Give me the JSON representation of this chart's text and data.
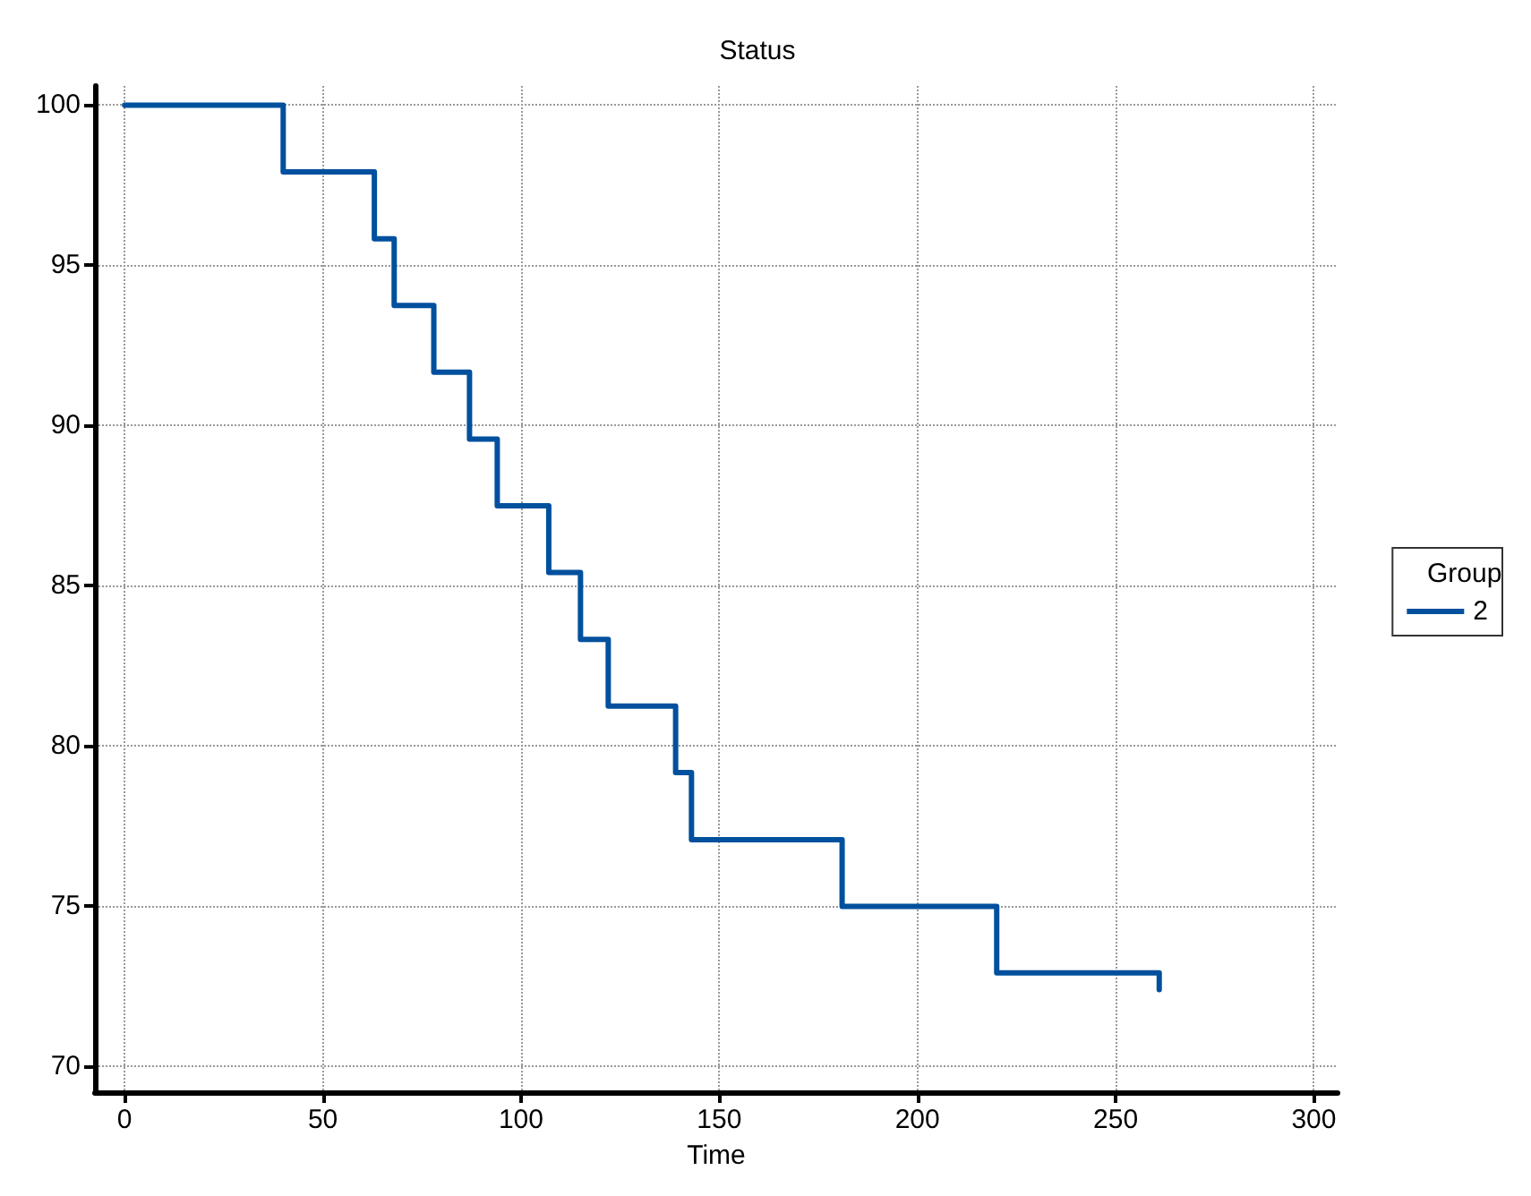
{
  "chart_data": {
    "type": "step",
    "title": "Status",
    "xlabel": "Time",
    "legend_title": "Group",
    "x": [
      0,
      40,
      63,
      68,
      78,
      87,
      94,
      107,
      115,
      122,
      139,
      143,
      181,
      220,
      261,
      261
    ],
    "series": [
      {
        "name": "2",
        "color": "#00509e",
        "values": [
          100,
          97.92,
          95.83,
          93.75,
          91.67,
          89.58,
          87.5,
          85.42,
          83.33,
          81.25,
          79.17,
          77.08,
          75,
          72.92,
          72.92,
          72.4
        ]
      }
    ],
    "xlim": [
      -7.5,
      306
    ],
    "xticks": [
      0,
      50,
      100,
      150,
      200,
      250,
      300
    ],
    "ylim": [
      69.2,
      100.6
    ],
    "yticks": [
      70,
      75,
      80,
      85,
      90,
      95,
      100
    ],
    "grid": true,
    "legend": "right",
    "line_style": "solid",
    "marker": "none"
  }
}
